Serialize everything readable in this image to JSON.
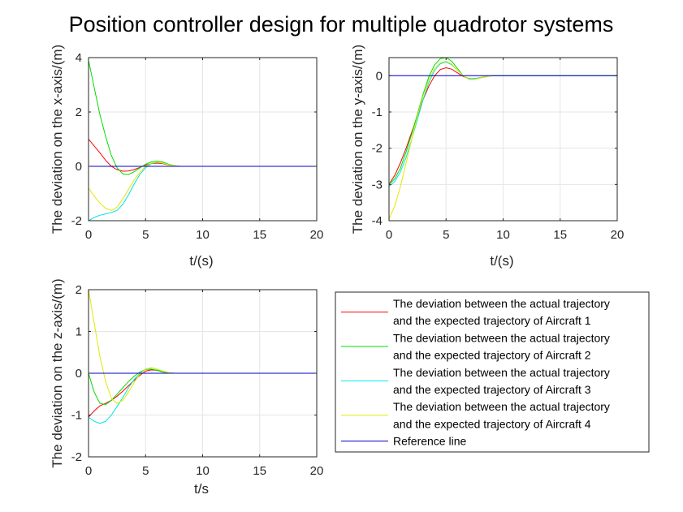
{
  "title": "Position controller design for multiple quadrotor systems",
  "chart_data": [
    {
      "type": "line",
      "id": "x",
      "xlabel": "t/(s)",
      "ylabel": "The deviation on the x-axis/(m)",
      "xlim": [
        0,
        20
      ],
      "ylim": [
        -2,
        4
      ],
      "xticks": [
        0,
        5,
        10,
        15,
        20
      ],
      "yticks": [
        -2,
        0,
        2,
        4
      ],
      "grid": true,
      "series": [
        {
          "color": "#ff0000",
          "x": [
            0,
            0.5,
            1,
            1.5,
            2,
            2.5,
            3,
            3.5,
            4,
            4.5,
            5,
            5.5,
            6,
            6.5,
            7,
            7.5,
            8,
            9,
            10,
            15,
            20
          ],
          "y": [
            1.0,
            0.75,
            0.5,
            0.22,
            0.0,
            -0.12,
            -0.18,
            -0.17,
            -0.12,
            -0.04,
            0.05,
            0.1,
            0.12,
            0.1,
            0.05,
            0.02,
            0.0,
            0,
            0,
            0,
            0
          ]
        },
        {
          "color": "#00dd00",
          "x": [
            0,
            0.5,
            1,
            1.5,
            2,
            2.5,
            3,
            3.5,
            4,
            4.5,
            5,
            5.5,
            6,
            6.5,
            7,
            7.5,
            8,
            9,
            10,
            15,
            20
          ],
          "y": [
            3.9,
            2.9,
            1.9,
            1.1,
            0.4,
            -0.05,
            -0.28,
            -0.3,
            -0.2,
            -0.06,
            0.08,
            0.16,
            0.19,
            0.16,
            0.08,
            0.03,
            0.0,
            0,
            0,
            0,
            0
          ]
        },
        {
          "color": "#00e5e5",
          "x": [
            0,
            0.5,
            1,
            1.5,
            2,
            2.5,
            3,
            3.5,
            4,
            4.5,
            5,
            5.5,
            6,
            6.5,
            7,
            7.5,
            8,
            9,
            10,
            15,
            20
          ],
          "y": [
            -2.0,
            -1.88,
            -1.8,
            -1.75,
            -1.7,
            -1.62,
            -1.4,
            -1.05,
            -0.65,
            -0.3,
            -0.05,
            0.1,
            0.15,
            0.12,
            0.06,
            0.02,
            0.0,
            0,
            0,
            0,
            0
          ]
        },
        {
          "color": "#e6e600",
          "x": [
            0,
            0.5,
            1,
            1.5,
            2,
            2.5,
            3,
            3.5,
            4,
            4.5,
            5,
            5.5,
            6,
            6.5,
            7,
            7.5,
            8,
            9,
            10,
            15,
            20
          ],
          "y": [
            -0.8,
            -1.1,
            -1.35,
            -1.55,
            -1.62,
            -1.5,
            -1.2,
            -0.85,
            -0.5,
            -0.22,
            0.0,
            0.12,
            0.16,
            0.12,
            0.06,
            0.02,
            0.0,
            0,
            0,
            0,
            0
          ]
        },
        {
          "color": "#0000cc",
          "x": [
            0,
            20
          ],
          "y": [
            0,
            0
          ]
        }
      ]
    },
    {
      "type": "line",
      "id": "y",
      "xlabel": "t/(s)",
      "ylabel": "The deviation on the y-axis/(m)",
      "xlim": [
        0,
        20
      ],
      "ylim": [
        -4,
        0.5
      ],
      "xticks": [
        0,
        5,
        10,
        15,
        20
      ],
      "yticks": [
        -4,
        -3,
        -2,
        -1,
        0
      ],
      "grid": true,
      "series": [
        {
          "color": "#ff0000",
          "x": [
            0,
            0.5,
            1,
            1.5,
            2,
            2.5,
            3,
            3.5,
            4,
            4.5,
            5,
            5.5,
            6,
            6.5,
            7,
            7.5,
            8,
            9,
            10,
            15,
            20
          ],
          "y": [
            -3.0,
            -2.75,
            -2.4,
            -2.0,
            -1.55,
            -1.1,
            -0.65,
            -0.28,
            0.0,
            0.17,
            0.22,
            0.18,
            0.08,
            -0.02,
            -0.08,
            -0.08,
            -0.05,
            0,
            0,
            0,
            0
          ]
        },
        {
          "color": "#00dd00",
          "x": [
            0,
            0.5,
            1,
            1.5,
            2,
            2.5,
            3,
            3.5,
            4,
            4.5,
            5,
            5.5,
            6,
            6.5,
            7,
            7.5,
            8,
            9,
            10,
            15,
            20
          ],
          "y": [
            -3.0,
            -2.85,
            -2.55,
            -2.1,
            -1.6,
            -1.05,
            -0.5,
            -0.02,
            0.3,
            0.47,
            0.5,
            0.4,
            0.2,
            0.0,
            -0.1,
            -0.1,
            -0.06,
            0,
            0,
            0,
            0
          ]
        },
        {
          "color": "#00e5e5",
          "x": [
            0,
            0.5,
            1,
            1.5,
            2,
            2.5,
            3,
            3.5,
            4,
            4.5,
            5,
            5.5,
            6,
            6.5,
            7,
            7.5,
            8,
            9,
            10,
            15,
            20
          ],
          "y": [
            -3.05,
            -2.92,
            -2.65,
            -2.25,
            -1.75,
            -1.2,
            -0.65,
            -0.18,
            0.15,
            0.33,
            0.38,
            0.3,
            0.15,
            0.0,
            -0.08,
            -0.08,
            -0.05,
            0,
            0,
            0,
            0
          ]
        },
        {
          "color": "#e6e600",
          "x": [
            0,
            0.5,
            1,
            1.5,
            2,
            2.5,
            3,
            3.5,
            4,
            4.5,
            5,
            5.5,
            6,
            6.5,
            7,
            7.5,
            8,
            9,
            10,
            15,
            20
          ],
          "y": [
            -3.95,
            -3.6,
            -3.05,
            -2.4,
            -1.75,
            -1.1,
            -0.55,
            -0.1,
            0.2,
            0.36,
            0.4,
            0.32,
            0.15,
            0.0,
            -0.1,
            -0.1,
            -0.06,
            0,
            0,
            0,
            0
          ]
        },
        {
          "color": "#0000cc",
          "x": [
            0,
            20
          ],
          "y": [
            0,
            0
          ]
        }
      ]
    },
    {
      "type": "line",
      "id": "z",
      "xlabel": "t/s",
      "ylabel": "The deviation on the z-axis/(m)",
      "xlim": [
        0,
        20
      ],
      "ylim": [
        -2,
        2
      ],
      "xticks": [
        0,
        5,
        10,
        15,
        20
      ],
      "yticks": [
        -2,
        -1,
        0,
        1,
        2
      ],
      "grid": true,
      "series": [
        {
          "color": "#ff0000",
          "x": [
            0,
            0.5,
            1,
            1.5,
            2,
            2.5,
            3,
            3.5,
            4,
            4.5,
            5,
            5.5,
            6,
            6.5,
            7,
            7.5,
            8,
            9,
            10,
            15,
            20
          ],
          "y": [
            -1.05,
            -0.9,
            -0.78,
            -0.72,
            -0.65,
            -0.55,
            -0.43,
            -0.3,
            -0.17,
            -0.05,
            0.05,
            0.08,
            0.07,
            0.04,
            0.01,
            0.0,
            0,
            0,
            0,
            0,
            0
          ]
        },
        {
          "color": "#00dd00",
          "x": [
            0,
            0.5,
            1,
            1.5,
            2,
            2.5,
            3,
            3.5,
            4,
            4.5,
            5,
            5.5,
            6,
            6.5,
            7,
            7.5,
            8,
            9,
            10,
            15,
            20
          ],
          "y": [
            0.0,
            -0.45,
            -0.72,
            -0.75,
            -0.65,
            -0.5,
            -0.35,
            -0.2,
            -0.07,
            0.03,
            0.09,
            0.1,
            0.07,
            0.03,
            0.01,
            0.0,
            0,
            0,
            0,
            0,
            0
          ]
        },
        {
          "color": "#00e5e5",
          "x": [
            0,
            0.5,
            1,
            1.5,
            2,
            2.5,
            3,
            3.5,
            4,
            4.5,
            5,
            5.5,
            6,
            6.5,
            7,
            7.5,
            8,
            9,
            10,
            15,
            20
          ],
          "y": [
            -1.05,
            -1.15,
            -1.2,
            -1.15,
            -1.0,
            -0.8,
            -0.58,
            -0.35,
            -0.15,
            0.0,
            0.1,
            0.13,
            0.1,
            0.05,
            0.02,
            0.0,
            0,
            0,
            0,
            0,
            0
          ]
        },
        {
          "color": "#e6e600",
          "x": [
            0,
            0.5,
            1,
            1.5,
            2,
            2.5,
            3,
            3.5,
            4,
            4.5,
            5,
            5.5,
            6,
            6.5,
            7,
            7.5,
            8,
            9,
            10,
            15,
            20
          ],
          "y": [
            2.0,
            1.2,
            0.4,
            -0.2,
            -0.6,
            -0.72,
            -0.65,
            -0.45,
            -0.22,
            -0.02,
            0.1,
            0.13,
            0.1,
            0.05,
            0.02,
            0.0,
            0,
            0,
            0,
            0,
            0
          ]
        },
        {
          "color": "#0000cc",
          "x": [
            0,
            20
          ],
          "y": [
            0,
            0
          ]
        }
      ]
    }
  ],
  "legend": {
    "placement": "lower-right",
    "entries": [
      {
        "color": "#ff0000",
        "lines": [
          "The deviation between the actual trajectory",
          "and the expected trajectory of Aircraft 1"
        ]
      },
      {
        "color": "#00dd00",
        "lines": [
          "The deviation between the actual trajectory",
          "and the expected trajectory of Aircraft 2"
        ]
      },
      {
        "color": "#00e5e5",
        "lines": [
          "The deviation between the actual trajectory",
          "and the expected trajectory of Aircraft 3"
        ]
      },
      {
        "color": "#e6e600",
        "lines": [
          "The deviation between the actual trajectory",
          "and the expected trajectory of Aircraft 4"
        ]
      },
      {
        "color": "#0000cc",
        "lines": [
          "Reference line"
        ]
      }
    ]
  }
}
